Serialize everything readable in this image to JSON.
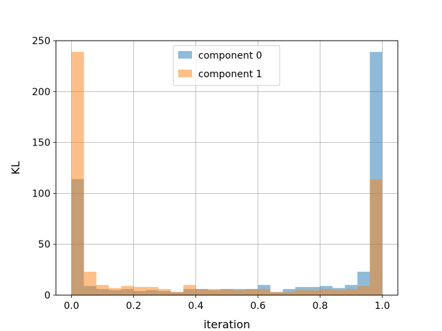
{
  "chart_data": {
    "type": "bar",
    "subtype": "overlapping histogram",
    "title": "",
    "xlabel": "iteration",
    "ylabel": "KL",
    "xlim": [
      -0.05,
      1.05
    ],
    "ylim": [
      0,
      250
    ],
    "xticks": [
      0.0,
      0.2,
      0.4,
      0.6,
      0.8,
      1.0
    ],
    "xtick_labels": [
      "0.0",
      "0.2",
      "0.4",
      "0.6",
      "0.8",
      "1.0"
    ],
    "yticks": [
      0,
      50,
      100,
      150,
      200,
      250
    ],
    "ytick_labels": [
      "0",
      "50",
      "100",
      "150",
      "200",
      "250"
    ],
    "grid": true,
    "legend_position": "top-center",
    "bin_edges": [
      0.0,
      0.04,
      0.08,
      0.12,
      0.16,
      0.2,
      0.24,
      0.28,
      0.32,
      0.36,
      0.4,
      0.44,
      0.48,
      0.52,
      0.56,
      0.6,
      0.64,
      0.68,
      0.72,
      0.76,
      0.8,
      0.84,
      0.88,
      0.92,
      0.96,
      1.0
    ],
    "series": [
      {
        "name": "component 0",
        "color": "#1f77b4",
        "values": [
          114,
          9,
          6,
          5,
          6,
          4,
          5,
          4,
          3,
          6,
          6,
          5,
          6,
          6,
          6,
          10,
          3,
          6,
          8,
          8,
          9,
          7,
          10,
          23,
          239
        ]
      },
      {
        "name": "component 1",
        "color": "#ff7f0e",
        "values": [
          239,
          23,
          10,
          7,
          9,
          8,
          8,
          6,
          3,
          10,
          6,
          6,
          6,
          5,
          6,
          6,
          3,
          3,
          5,
          5,
          6,
          5,
          6,
          9,
          114
        ]
      }
    ]
  }
}
